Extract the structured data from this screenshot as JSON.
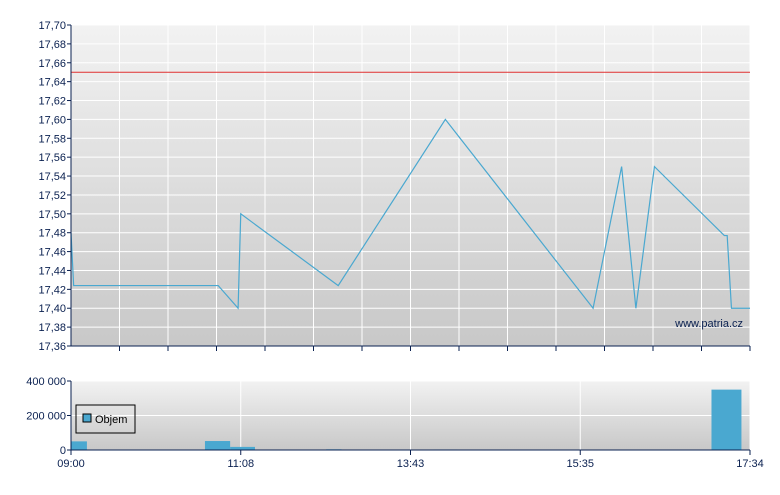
{
  "chart_data": [
    {
      "type": "line",
      "ylim": [
        17.36,
        17.7
      ],
      "yticks": [
        "17,36",
        "17,38",
        "17,40",
        "17,42",
        "17,44",
        "17,46",
        "17,48",
        "17,50",
        "17,52",
        "17,54",
        "17,56",
        "17,58",
        "17,60",
        "17,62",
        "17,64",
        "17,66",
        "17,68",
        "17,70"
      ],
      "grid": true,
      "reference_line": {
        "value": 17.65,
        "color": "#e03030"
      },
      "line_color": "#4aa8d0",
      "watermark": "www.patria.cz",
      "points": [
        [
          "09:00",
          17.48
        ],
        [
          "09:02",
          17.424
        ],
        [
          "10:51",
          17.424
        ],
        [
          "11:06",
          17.4
        ],
        [
          "11:08",
          17.5
        ],
        [
          "12:37",
          17.424
        ],
        [
          "14:06",
          17.6
        ],
        [
          "15:44",
          17.4
        ],
        [
          "16:04",
          17.55
        ],
        [
          "16:14",
          17.4
        ],
        [
          "16:27",
          17.55
        ],
        [
          "17:16",
          17.477
        ],
        [
          "17:18",
          17.477
        ],
        [
          "17:21",
          17.4
        ],
        [
          "17:34",
          17.4
        ]
      ]
    },
    {
      "type": "bar",
      "ylim": [
        0,
        400000
      ],
      "yticks": [
        "0",
        "200 000",
        "400 000"
      ],
      "xticks": [
        "09:00",
        "11:08",
        "13:43",
        "15:35",
        "17:34"
      ],
      "legend": "Objem",
      "legend_placement": "left",
      "bar_color": "#4aa8d0",
      "bars": [
        {
          "from": "09:00",
          "to": "09:12",
          "value": 50000
        },
        {
          "from": "10:41",
          "to": "11:00",
          "value": 52000
        },
        {
          "from": "11:00",
          "to": "11:21",
          "value": 18000
        },
        {
          "from": "12:26",
          "to": "12:40",
          "value": 4000
        },
        {
          "from": "13:58",
          "to": "14:14",
          "value": 3000
        },
        {
          "from": "17:07",
          "to": "17:28",
          "value": 350000
        }
      ]
    }
  ]
}
